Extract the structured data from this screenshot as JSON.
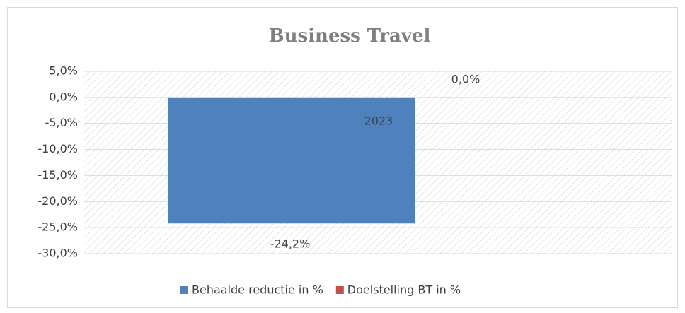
{
  "chart_data": {
    "type": "bar",
    "title": "Business Travel",
    "categories": [
      "2023"
    ],
    "series": [
      {
        "name": "Behaalde reductie in %",
        "color": "#4f81bd",
        "values": [
          -24.2
        ],
        "value_labels": [
          "-24,2%"
        ]
      },
      {
        "name": "Doelstelling BT in %",
        "color": "#c0504d",
        "values": [
          0
        ],
        "value_labels": [
          "0,0%"
        ]
      }
    ],
    "ylim": [
      -30,
      5
    ],
    "yticks": [
      {
        "value": 5,
        "label": "5,0%"
      },
      {
        "value": 0,
        "label": "0,0%"
      },
      {
        "value": -5,
        "label": "-5,0%"
      },
      {
        "value": -10,
        "label": "-10,0%"
      },
      {
        "value": -15,
        "label": "-15,0%"
      },
      {
        "value": -20,
        "label": "-20,0%"
      },
      {
        "value": -25,
        "label": "-25,0%"
      },
      {
        "value": -30,
        "label": "-30,0%"
      }
    ],
    "grid": true,
    "legend": "bottom"
  }
}
